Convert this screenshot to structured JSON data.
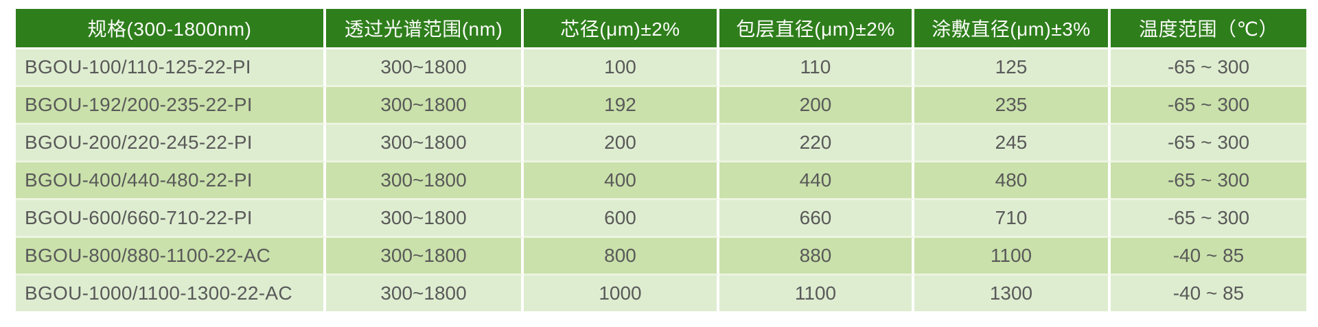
{
  "page": {
    "background": "#ffffff",
    "description_label": "fiber-specification-table"
  },
  "table": {
    "columns": [
      {
        "label": "规格(300-1800nm)"
      },
      {
        "label": "透过光谱范围(nm)"
      },
      {
        "label": "芯径(μm)±2%"
      },
      {
        "label": "包层直径(μm)±2%"
      },
      {
        "label": "涂敷直径(μm)±3%"
      },
      {
        "label": "温度范围（℃）"
      }
    ],
    "rows": [
      [
        "BGOU-100/110-125-22-PI",
        "300~1800",
        "100",
        "110",
        "125",
        "-65 ~ 300"
      ],
      [
        "BGOU-192/200-235-22-PI",
        "300~1800",
        "192",
        "200",
        "235",
        "-65 ~ 300"
      ],
      [
        "BGOU-200/220-245-22-PI",
        "300~1800",
        "200",
        "220",
        "245",
        "-65 ~ 300"
      ],
      [
        "BGOU-400/440-480-22-PI",
        "300~1800",
        "400",
        "440",
        "480",
        "-65 ~ 300"
      ],
      [
        "BGOU-600/660-710-22-PI",
        "300~1800",
        "600",
        "660",
        "710",
        "-65 ~ 300"
      ],
      [
        "BGOU-800/880-1100-22-AC",
        "300~1800",
        "800",
        "880",
        "1100",
        "-40 ~ 85"
      ],
      [
        "BGOU-1000/1100-1300-22-AC",
        "300~1800",
        "1000",
        "1100",
        "1300",
        "-40 ~ 85"
      ]
    ],
    "colors": {
      "header_bg": "#2e7e1c",
      "header_text": "#fbfcf8",
      "row_light": "#deedd0",
      "row_alt": "#cae1ab",
      "body_text": "#595959",
      "vertical_divider": "#ffffff",
      "horizontal_divider": "#edf4e1"
    }
  }
}
